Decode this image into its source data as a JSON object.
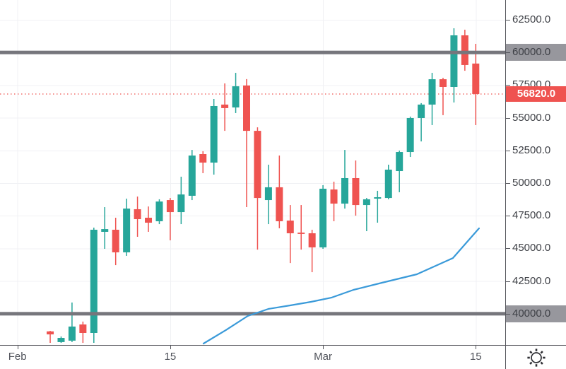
{
  "colors": {
    "background": "#ffffff",
    "up": "#26a69a",
    "down": "#ef5350",
    "grid": "#f0f1f4",
    "axis_border": "#55565c",
    "axis_text": "#3e4046",
    "level_bar": "#76767c",
    "level_label_bg": "#97979d",
    "level_label_text": "#111111",
    "last_price_bg": "#ef5350",
    "last_price_text": "#ffffff",
    "last_price_dotted": "#ef5350",
    "ma_line": "#3a9ad9"
  },
  "icons": {
    "theme_sun_icon": "sun / settings glyph in bottom-right axis corner"
  },
  "chart_data": {
    "type": "candlestick",
    "title": "",
    "xlabel": "",
    "ylabel": "",
    "grid": true,
    "x_axis": {
      "xlim": [
        -4.6,
        41.7
      ],
      "ticks": [
        {
          "label": "Feb",
          "index": -3
        },
        {
          "label": "15",
          "index": 11
        },
        {
          "label": "Mar",
          "index": 25
        },
        {
          "label": "15",
          "index": 39
        }
      ]
    },
    "y_axis": {
      "ylim": [
        37610,
        64015
      ],
      "ticks": [
        {
          "label": "62500.0",
          "price": 62500
        },
        {
          "label": "60000.0",
          "price": 60000
        },
        {
          "label": "57500.0",
          "price": 57500
        },
        {
          "label": "55000.0",
          "price": 55000
        },
        {
          "label": "52500.0",
          "price": 52500
        },
        {
          "label": "50000.0",
          "price": 50000
        },
        {
          "label": "47500.0",
          "price": 47500
        },
        {
          "label": "45000.0",
          "price": 45000
        },
        {
          "label": "42500.0",
          "price": 42500
        },
        {
          "label": "40000.0",
          "price": 40000
        }
      ]
    },
    "levels": [
      {
        "label": "60000.0",
        "price": 60000
      },
      {
        "label": "40000.0",
        "price": 40000
      }
    ],
    "last_price": {
      "label": "56820.0",
      "value": 56820
    },
    "ohlc": [
      [
        38650,
        38690,
        37770,
        38420
      ],
      [
        37830,
        38260,
        37770,
        38150
      ],
      [
        37940,
        40860,
        37830,
        39020
      ],
      [
        39180,
        39400,
        37770,
        38530
      ],
      [
        38530,
        46590,
        37770,
        46430
      ],
      [
        46270,
        48160,
        44970,
        46480
      ],
      [
        46430,
        47350,
        43720,
        44700
      ],
      [
        44700,
        48810,
        44430,
        48050
      ],
      [
        48000,
        48970,
        45890,
        47240
      ],
      [
        47350,
        48210,
        46270,
        46970
      ],
      [
        47080,
        48760,
        46860,
        48590
      ],
      [
        48700,
        48860,
        45620,
        47780
      ],
      [
        47780,
        50490,
        46860,
        49130
      ],
      [
        49030,
        52540,
        48700,
        52110
      ],
      [
        52220,
        52440,
        50760,
        51570
      ],
      [
        51570,
        56440,
        50650,
        55900
      ],
      [
        56010,
        57630,
        54000,
        55740
      ],
      [
        55790,
        58440,
        55360,
        57410
      ],
      [
        57470,
        57960,
        48160,
        54000
      ],
      [
        54000,
        54270,
        44910,
        48860
      ],
      [
        48700,
        51410,
        46860,
        49680
      ],
      [
        49680,
        52110,
        46540,
        47080
      ],
      [
        47130,
        48320,
        43880,
        46160
      ],
      [
        46210,
        48320,
        44910,
        46110
      ],
      [
        46160,
        46430,
        43180,
        45080
      ],
      [
        45080,
        49840,
        44970,
        49570
      ],
      [
        49510,
        50110,
        47080,
        48430
      ],
      [
        48430,
        52540,
        48050,
        50380
      ],
      [
        50380,
        51730,
        47510,
        48320
      ],
      [
        48320,
        48860,
        46320,
        48760
      ],
      [
        48810,
        49410,
        46970,
        48920
      ],
      [
        48860,
        51410,
        48760,
        51030
      ],
      [
        50920,
        52490,
        49300,
        52380
      ],
      [
        52380,
        55090,
        52000,
        54980
      ],
      [
        54980,
        56120,
        53190,
        56010
      ],
      [
        56010,
        58440,
        54440,
        57950
      ],
      [
        57950,
        58060,
        55200,
        57360
      ],
      [
        57360,
        61850,
        56170,
        61310
      ],
      [
        61310,
        61740,
        58600,
        59040
      ],
      [
        59150,
        60660,
        54440,
        56820
      ]
    ],
    "ma_line": {
      "points": [
        [
          14.05,
          37720
        ],
        [
          16.1,
          38750
        ],
        [
          18.1,
          39830
        ],
        [
          20.0,
          40370
        ],
        [
          22.0,
          40640
        ],
        [
          23.9,
          40910
        ],
        [
          25.8,
          41240
        ],
        [
          27.8,
          41830
        ],
        [
          30.4,
          42370
        ],
        [
          33.6,
          43020
        ],
        [
          36.9,
          44260
        ],
        [
          39.3,
          46540
        ]
      ]
    }
  }
}
